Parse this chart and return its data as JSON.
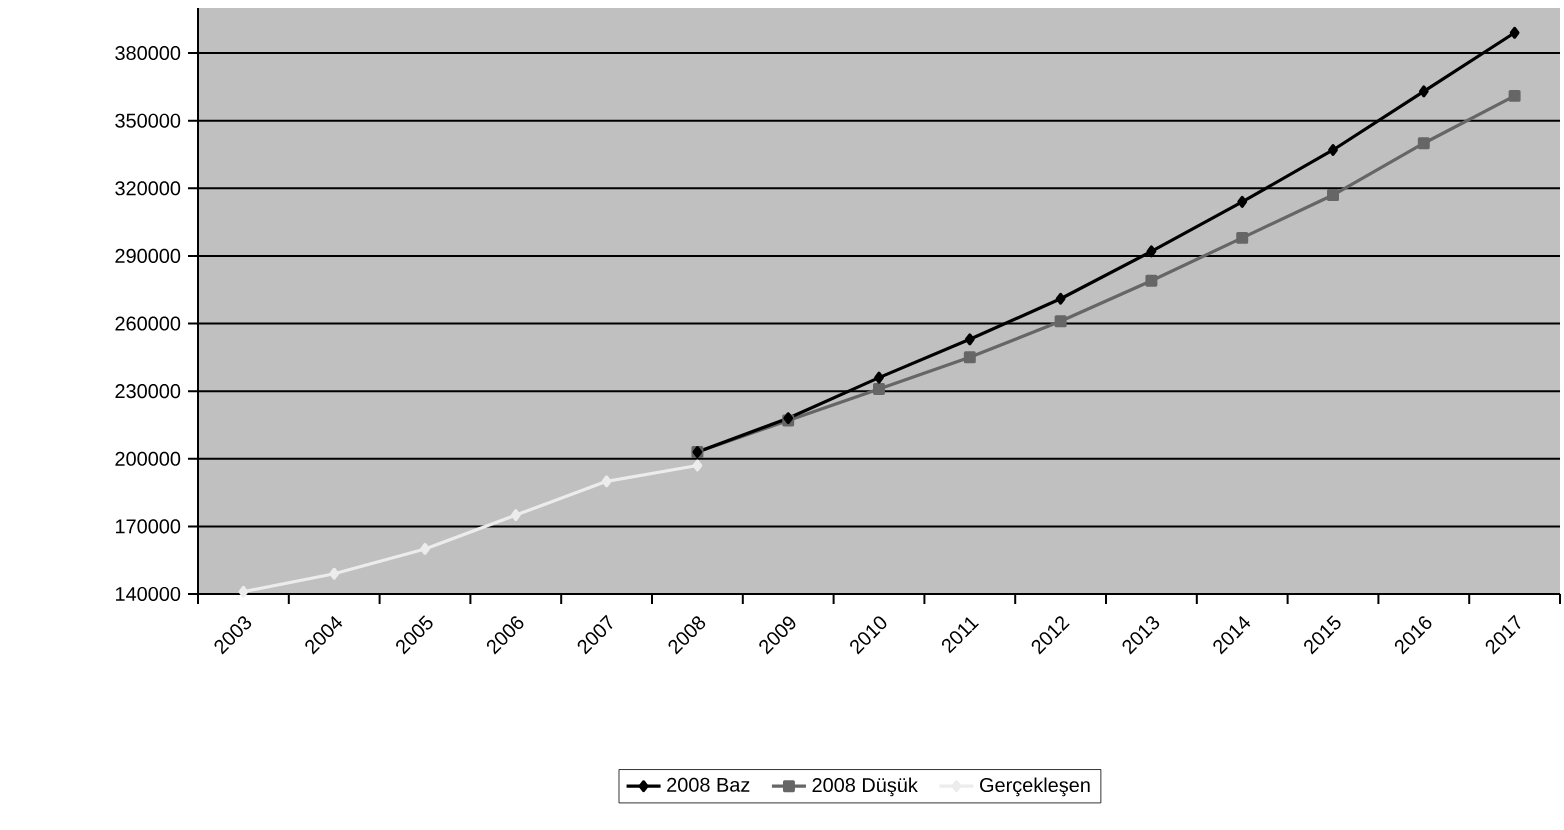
{
  "chart_data": {
    "type": "line",
    "categories": [
      "2003",
      "2004",
      "2005",
      "2006",
      "2007",
      "2008",
      "2009",
      "2010",
      "2011",
      "2012",
      "2013",
      "2014",
      "2015",
      "2016",
      "2017"
    ],
    "series": [
      {
        "name": "2008 Baz",
        "color": "#000000",
        "marker": "diamond",
        "values": [
          null,
          null,
          null,
          null,
          null,
          203000,
          218000,
          236000,
          253000,
          271000,
          292000,
          314000,
          337000,
          363000,
          389000
        ]
      },
      {
        "name": "2008 Düşük",
        "color": "#666666",
        "marker": "square",
        "values": [
          null,
          null,
          null,
          null,
          null,
          203000,
          217000,
          231000,
          245000,
          261000,
          279000,
          298000,
          317000,
          340000,
          361000
        ]
      },
      {
        "name": "Gerçekleşen",
        "color": "#ececec",
        "marker": "diamond",
        "values": [
          141000,
          149000,
          160000,
          175000,
          190000,
          197000,
          null,
          null,
          null,
          null,
          null,
          null,
          null,
          null,
          null
        ]
      }
    ],
    "ylim": [
      140000,
      400000
    ],
    "yticks": [
      140000,
      170000,
      200000,
      230000,
      260000,
      290000,
      320000,
      350000,
      380000
    ],
    "grid": "y",
    "legend": "bottom"
  }
}
